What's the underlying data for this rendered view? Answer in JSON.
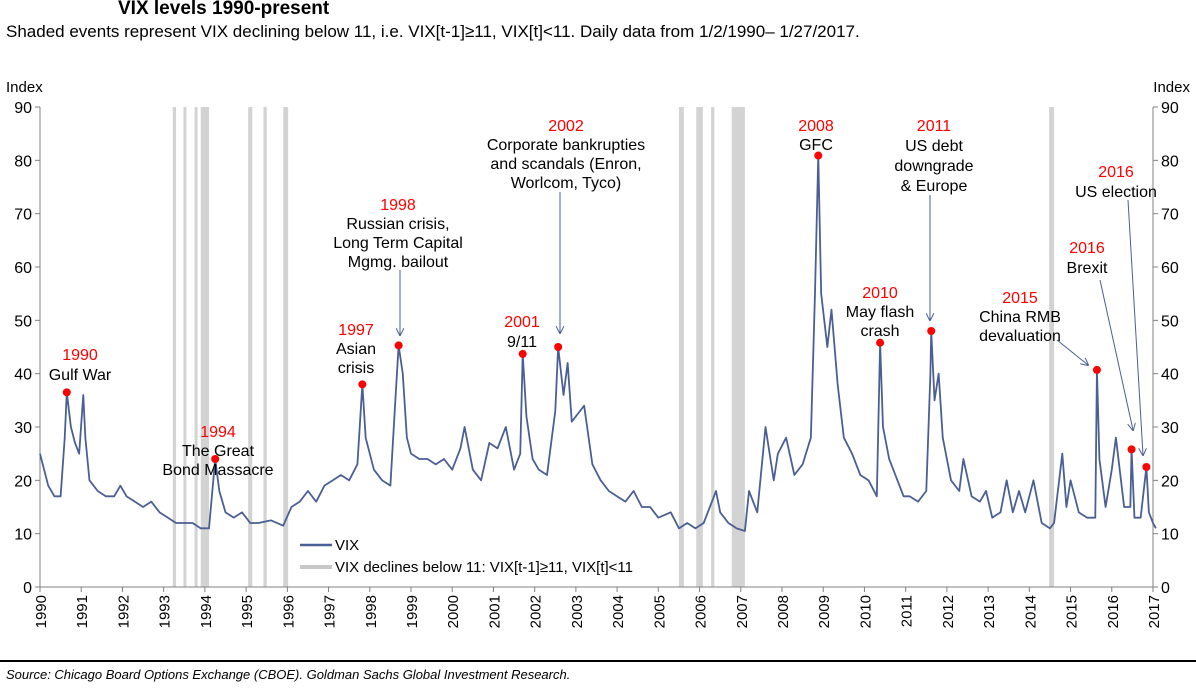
{
  "title": "VIX levels 1990-present",
  "subtitle": "Shaded events represent VIX declining below 11, i.e. VIX[t-1]≥11, VIX[t]<11. Daily data from 1/2/1990– 1/27/2017.",
  "source": "Source: Chicago Board Options Exchange (CBOE). Goldman Sachs Global Investment Research.",
  "colors": {
    "line": "#4a5f94",
    "event": "#ff0000",
    "shade": "#c8c8c8",
    "axis": "#808080"
  },
  "chart_data": {
    "type": "line",
    "title": "VIX levels 1990-present",
    "ylabel_left": "Index",
    "ylabel_right": "Index",
    "ylim": [
      0,
      90
    ],
    "yticks": [
      0,
      10,
      20,
      30,
      40,
      50,
      60,
      70,
      80,
      90
    ],
    "xlim": [
      1990,
      2017
    ],
    "xticks": [
      "1990",
      "1991",
      "1992",
      "1993",
      "1994",
      "1995",
      "1996",
      "1997",
      "1998",
      "1999",
      "2000",
      "2001",
      "2002",
      "2003",
      "2004",
      "2005",
      "2006",
      "2007",
      "2008",
      "2009",
      "2010",
      "2011",
      "2012",
      "2013",
      "2014",
      "2015",
      "2016",
      "2017"
    ],
    "legend": {
      "position": "bottom-left",
      "items": [
        "VIX",
        "VIX declines below 11: VIX[t-1]≥11, VIX[t]<11"
      ]
    },
    "series": [
      {
        "name": "VIX",
        "points": [
          [
            1990.0,
            25
          ],
          [
            1990.1,
            22
          ],
          [
            1990.2,
            19
          ],
          [
            1990.35,
            17
          ],
          [
            1990.5,
            17
          ],
          [
            1990.6,
            28
          ],
          [
            1990.65,
            36.5
          ],
          [
            1990.75,
            30
          ],
          [
            1990.85,
            27
          ],
          [
            1990.95,
            25
          ],
          [
            1991.05,
            36
          ],
          [
            1991.1,
            28
          ],
          [
            1991.2,
            20
          ],
          [
            1991.4,
            18
          ],
          [
            1991.6,
            17
          ],
          [
            1991.8,
            17
          ],
          [
            1991.95,
            19
          ],
          [
            1992.1,
            17
          ],
          [
            1992.3,
            16
          ],
          [
            1992.5,
            15
          ],
          [
            1992.7,
            16
          ],
          [
            1992.9,
            14
          ],
          [
            1993.1,
            13
          ],
          [
            1993.3,
            12
          ],
          [
            1993.5,
            12
          ],
          [
            1993.7,
            12
          ],
          [
            1993.9,
            11
          ],
          [
            1994.1,
            11
          ],
          [
            1994.25,
            24
          ],
          [
            1994.35,
            18
          ],
          [
            1994.5,
            14
          ],
          [
            1994.7,
            13
          ],
          [
            1994.9,
            14
          ],
          [
            1995.1,
            12
          ],
          [
            1995.3,
            12
          ],
          [
            1995.6,
            12.5
          ],
          [
            1995.9,
            11.5
          ],
          [
            1996.1,
            15
          ],
          [
            1996.3,
            16
          ],
          [
            1996.5,
            18
          ],
          [
            1996.7,
            16
          ],
          [
            1996.9,
            19
          ],
          [
            1997.1,
            20
          ],
          [
            1997.3,
            21
          ],
          [
            1997.5,
            20
          ],
          [
            1997.7,
            23
          ],
          [
            1997.82,
            38
          ],
          [
            1997.9,
            28
          ],
          [
            1998.1,
            22
          ],
          [
            1998.3,
            20
          ],
          [
            1998.5,
            19
          ],
          [
            1998.62,
            35
          ],
          [
            1998.7,
            45.3
          ],
          [
            1998.8,
            40
          ],
          [
            1998.9,
            28
          ],
          [
            1999.0,
            25
          ],
          [
            1999.2,
            24
          ],
          [
            1999.4,
            24
          ],
          [
            1999.6,
            23
          ],
          [
            1999.8,
            24
          ],
          [
            2000.0,
            22
          ],
          [
            2000.2,
            26
          ],
          [
            2000.3,
            30
          ],
          [
            2000.5,
            22
          ],
          [
            2000.7,
            20
          ],
          [
            2000.9,
            27
          ],
          [
            2001.1,
            26
          ],
          [
            2001.3,
            30
          ],
          [
            2001.5,
            22
          ],
          [
            2001.65,
            25
          ],
          [
            2001.71,
            43.7
          ],
          [
            2001.8,
            32
          ],
          [
            2001.95,
            24
          ],
          [
            2002.1,
            22
          ],
          [
            2002.3,
            21
          ],
          [
            2002.5,
            33
          ],
          [
            2002.57,
            45
          ],
          [
            2002.7,
            36
          ],
          [
            2002.8,
            42
          ],
          [
            2002.9,
            31
          ],
          [
            2003.1,
            33
          ],
          [
            2003.2,
            34
          ],
          [
            2003.4,
            23
          ],
          [
            2003.6,
            20
          ],
          [
            2003.8,
            18
          ],
          [
            2004.0,
            17
          ],
          [
            2004.2,
            16
          ],
          [
            2004.4,
            18
          ],
          [
            2004.6,
            15
          ],
          [
            2004.8,
            15
          ],
          [
            2005.0,
            13
          ],
          [
            2005.3,
            14
          ],
          [
            2005.5,
            11
          ],
          [
            2005.7,
            12
          ],
          [
            2005.9,
            11
          ],
          [
            2006.1,
            12
          ],
          [
            2006.4,
            18
          ],
          [
            2006.5,
            14
          ],
          [
            2006.7,
            12
          ],
          [
            2006.9,
            11
          ],
          [
            2007.1,
            10.5
          ],
          [
            2007.2,
            18
          ],
          [
            2007.4,
            14
          ],
          [
            2007.6,
            30
          ],
          [
            2007.8,
            20
          ],
          [
            2007.9,
            25
          ],
          [
            2008.1,
            28
          ],
          [
            2008.3,
            21
          ],
          [
            2008.5,
            23
          ],
          [
            2008.7,
            28
          ],
          [
            2008.8,
            55
          ],
          [
            2008.88,
            80.9
          ],
          [
            2008.95,
            55
          ],
          [
            2009.1,
            45
          ],
          [
            2009.2,
            52
          ],
          [
            2009.35,
            38
          ],
          [
            2009.5,
            28
          ],
          [
            2009.7,
            25
          ],
          [
            2009.9,
            21
          ],
          [
            2010.1,
            20
          ],
          [
            2010.3,
            17
          ],
          [
            2010.38,
            45.8
          ],
          [
            2010.45,
            30
          ],
          [
            2010.6,
            24
          ],
          [
            2010.8,
            20
          ],
          [
            2010.95,
            17
          ],
          [
            2011.1,
            17
          ],
          [
            2011.3,
            16
          ],
          [
            2011.5,
            18
          ],
          [
            2011.6,
            40
          ],
          [
            2011.62,
            48
          ],
          [
            2011.7,
            35
          ],
          [
            2011.8,
            40
          ],
          [
            2011.9,
            28
          ],
          [
            2012.1,
            20
          ],
          [
            2012.3,
            18
          ],
          [
            2012.4,
            24
          ],
          [
            2012.6,
            17
          ],
          [
            2012.8,
            16
          ],
          [
            2012.95,
            18
          ],
          [
            2013.1,
            13
          ],
          [
            2013.3,
            14
          ],
          [
            2013.45,
            20
          ],
          [
            2013.6,
            14
          ],
          [
            2013.75,
            18
          ],
          [
            2013.9,
            14
          ],
          [
            2014.1,
            20
          ],
          [
            2014.3,
            12
          ],
          [
            2014.5,
            11
          ],
          [
            2014.6,
            12
          ],
          [
            2014.8,
            25
          ],
          [
            2014.9,
            15
          ],
          [
            2015.0,
            20
          ],
          [
            2015.2,
            14
          ],
          [
            2015.4,
            13
          ],
          [
            2015.6,
            13
          ],
          [
            2015.64,
            40.7
          ],
          [
            2015.7,
            24
          ],
          [
            2015.85,
            15
          ],
          [
            2016.0,
            22
          ],
          [
            2016.1,
            28
          ],
          [
            2016.3,
            15
          ],
          [
            2016.45,
            15
          ],
          [
            2016.48,
            25.8
          ],
          [
            2016.55,
            13
          ],
          [
            2016.7,
            13
          ],
          [
            2016.84,
            22.5
          ],
          [
            2016.9,
            14
          ],
          [
            2017.0,
            12
          ],
          [
            2017.07,
            11
          ]
        ]
      }
    ],
    "shaded_periods": [
      [
        1993.22,
        1993.3
      ],
      [
        1993.48,
        1993.55
      ],
      [
        1993.75,
        1993.82
      ],
      [
        1993.9,
        1994.1
      ],
      [
        1995.05,
        1995.15
      ],
      [
        1995.42,
        1995.5
      ],
      [
        1995.9,
        1996.02
      ],
      [
        2005.5,
        2005.62
      ],
      [
        2005.92,
        2006.08
      ],
      [
        2006.28,
        2006.36
      ],
      [
        2006.78,
        2007.1
      ],
      [
        2014.48,
        2014.6
      ]
    ],
    "annotations": [
      {
        "year": "1990",
        "text": [
          "Gulf War"
        ],
        "x": 1990.65,
        "y": 36.5
      },
      {
        "year": "1994",
        "text": [
          "The Great",
          "Bond Massacre"
        ],
        "x": 1994.25,
        "y": 24
      },
      {
        "year": "1997",
        "text": [
          "Asian",
          "crisis"
        ],
        "x": 1997.82,
        "y": 38
      },
      {
        "year": "1998",
        "text": [
          "Russian crisis,",
          "Long Term Capital",
          "Mgmg. bailout"
        ],
        "x": 1998.7,
        "y": 45.3
      },
      {
        "year": "2001",
        "text": [
          "9/11"
        ],
        "x": 2001.71,
        "y": 43.7
      },
      {
        "year": "2002",
        "text": [
          "Corporate bankrupties",
          "and scandals (Enron,",
          "Worlcom, Tyco)"
        ],
        "x": 2002.57,
        "y": 45
      },
      {
        "year": "2008",
        "text": [
          "GFC"
        ],
        "x": 2008.88,
        "y": 80.9
      },
      {
        "year": "2010",
        "text": [
          "May flash",
          "crash"
        ],
        "x": 2010.38,
        "y": 45.8
      },
      {
        "year": "2011",
        "text": [
          "US debt",
          "downgrade",
          "& Europe"
        ],
        "x": 2011.62,
        "y": 48
      },
      {
        "year": "2015",
        "text": [
          "China RMB",
          "devaluation"
        ],
        "x": 2015.64,
        "y": 40.7
      },
      {
        "year": "2016",
        "text": [
          "Brexit"
        ],
        "x": 2016.48,
        "y": 25.8
      },
      {
        "year": "2016",
        "text": [
          "US election"
        ],
        "x": 2016.84,
        "y": 22.5
      }
    ]
  }
}
